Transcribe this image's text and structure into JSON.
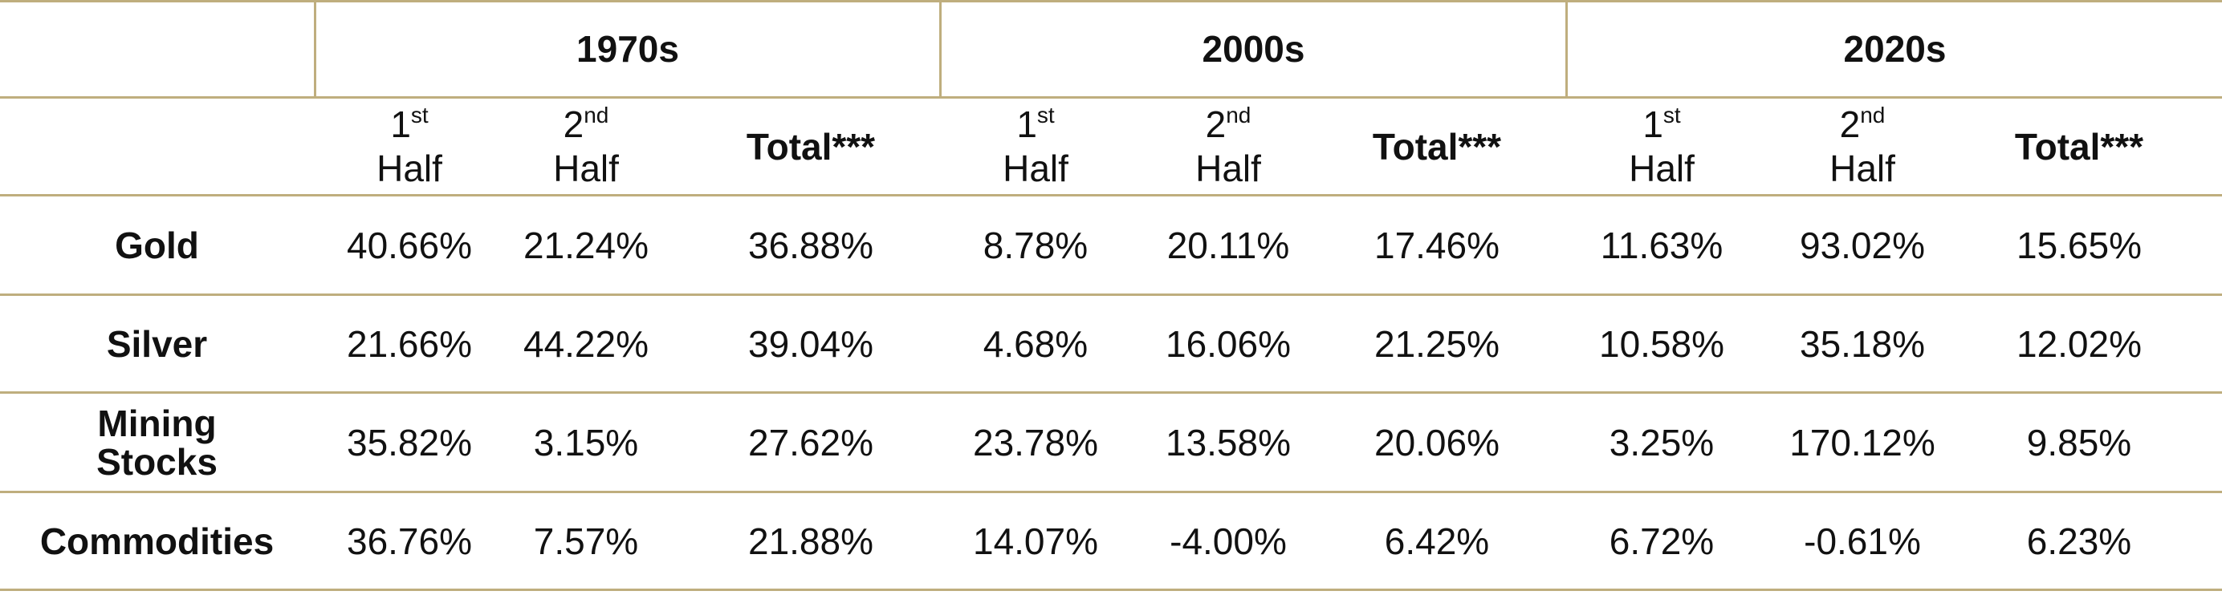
{
  "chart_data": {
    "type": "table",
    "columns": [
      {
        "decade": "1970s",
        "subcolumns": [
          {
            "ord": "1",
            "sup": "st",
            "word": "Half"
          },
          {
            "ord": "2",
            "sup": "nd",
            "word": "Half"
          },
          {
            "label": "Total***"
          }
        ]
      },
      {
        "decade": "2000s",
        "subcolumns": [
          {
            "ord": "1",
            "sup": "st",
            "word": "Half"
          },
          {
            "ord": "2",
            "sup": "nd",
            "word": "Half"
          },
          {
            "label": "Total***"
          }
        ]
      },
      {
        "decade": "2020s",
        "subcolumns": [
          {
            "ord": "1",
            "sup": "st",
            "word": "Half"
          },
          {
            "ord": "2",
            "sup": "nd",
            "word": "Half"
          },
          {
            "label": "Total***"
          }
        ]
      }
    ],
    "rows": [
      {
        "label_lines": [
          "Gold"
        ],
        "values": [
          "40.66%",
          "21.24%",
          "36.88%",
          "8.78%",
          "20.11%",
          "17.46%",
          "11.63%",
          "93.02%",
          "15.65%"
        ]
      },
      {
        "label_lines": [
          "Silver"
        ],
        "values": [
          "21.66%",
          "44.22%",
          "39.04%",
          "4.68%",
          "16.06%",
          "21.25%",
          "10.58%",
          "35.18%",
          "12.02%"
        ]
      },
      {
        "label_lines": [
          "Mining",
          "Stocks"
        ],
        "values": [
          "35.82%",
          "3.15%",
          "27.62%",
          "23.78%",
          "13.58%",
          "20.06%",
          "3.25%",
          "170.12%",
          "9.85%"
        ]
      },
      {
        "label_lines": [
          "Commodities"
        ],
        "values": [
          "36.76%",
          "7.57%",
          "21.88%",
          "14.07%",
          "-4.00%",
          "6.42%",
          "6.72%",
          "-0.61%",
          "6.23%"
        ]
      }
    ]
  }
}
